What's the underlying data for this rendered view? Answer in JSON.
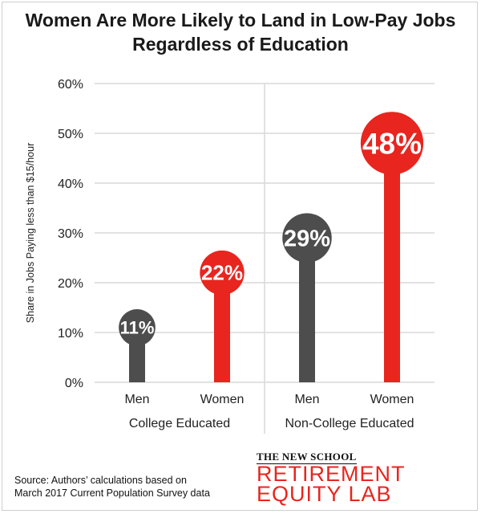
{
  "title": {
    "line1": "Women Are More Likely to Land in Low-Pay Jobs",
    "line2": "Regardless of Education"
  },
  "colors": {
    "men": "#4d4d4d",
    "women": "#e8251f",
    "grid": "#d9d9d9",
    "text": "#222222"
  },
  "chart_data": {
    "type": "bar",
    "title": "Women Are More Likely to Land in Low-Pay Jobs Regardless of Education",
    "ylabel": "Share in Jobs Paying less than $15/hour",
    "ylim": [
      0,
      60
    ],
    "yticks": [
      "0%",
      "10%",
      "20%",
      "30%",
      "40%",
      "50%",
      "60%"
    ],
    "groups": [
      {
        "name": "College Educated",
        "bars": [
          {
            "category": "Men",
            "value": 11,
            "label": "11%"
          },
          {
            "category": "Women",
            "value": 22,
            "label": "22%"
          }
        ]
      },
      {
        "name": "Non-College Educated",
        "bars": [
          {
            "category": "Men",
            "value": 29,
            "label": "29%"
          },
          {
            "category": "Women",
            "value": 48,
            "label": "48%"
          }
        ]
      }
    ],
    "grid": true
  },
  "source": {
    "line1": "Source: Authors’ calculations based on",
    "line2": "March 2017 Current Population Survey data"
  },
  "logo": {
    "top": "THE NEW SCHOOL",
    "line1": "RETIREMENT",
    "line2": "EQUITY LAB"
  }
}
